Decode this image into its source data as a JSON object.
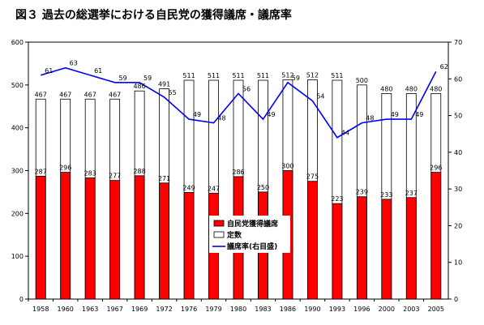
{
  "title": "図３ 過去の総選挙における自民党の獲得議席・議席率",
  "chart_data": {
    "type": "bar",
    "categories": [
      "1958",
      "1960",
      "1963",
      "1967",
      "1969",
      "1972",
      "1976",
      "1979",
      "1980",
      "1983",
      "1986",
      "1990",
      "1993",
      "1996",
      "2000",
      "2003",
      "2005"
    ],
    "series": [
      {
        "name": "自民党獲得議席",
        "type": "bar",
        "axis": "left",
        "color": "#ff0000",
        "values": [
          287,
          296,
          283,
          277,
          288,
          271,
          249,
          247,
          286,
          250,
          300,
          275,
          223,
          239,
          233,
          237,
          296
        ]
      },
      {
        "name": "定数",
        "type": "bar",
        "axis": "left",
        "color": "#ffffff",
        "values": [
          467,
          467,
          467,
          467,
          486,
          491,
          511,
          511,
          511,
          511,
          512,
          512,
          511,
          500,
          480,
          480,
          480
        ]
      },
      {
        "name": "議席率(右目盛)",
        "type": "line",
        "axis": "right",
        "color": "#0000ff",
        "values": [
          61,
          63,
          61,
          59,
          59,
          55,
          49,
          48,
          56,
          49,
          59,
          54,
          44,
          48,
          49,
          49,
          62
        ]
      }
    ],
    "left_axis": {
      "min": 0,
      "max": 600,
      "ticks": [
        "0",
        "100",
        "200",
        "300",
        "400",
        "500",
        "600"
      ]
    },
    "right_axis": {
      "min": 0,
      "max": 70,
      "ticks": [
        "0",
        "10",
        "20",
        "30",
        "40",
        "50",
        "60",
        "70"
      ]
    },
    "legend_position": "center",
    "grid": false
  }
}
